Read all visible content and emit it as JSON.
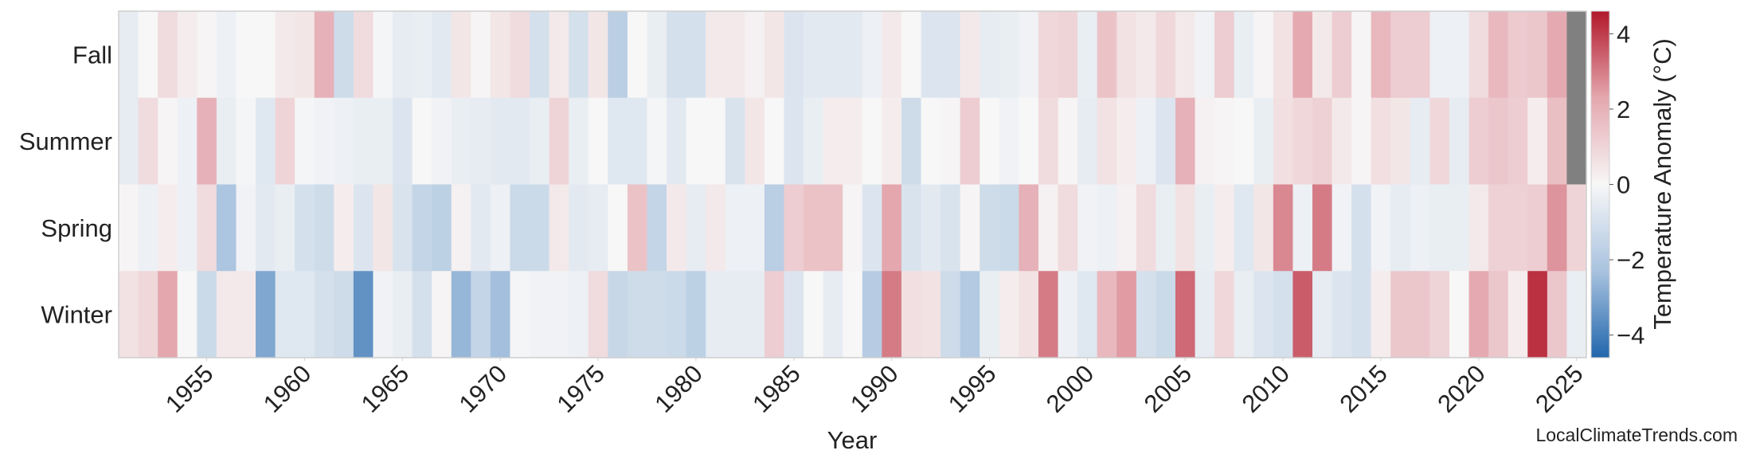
{
  "chart_data": {
    "type": "heatmap",
    "xlabel": "Year",
    "x": [
      1951,
      1952,
      1953,
      1954,
      1955,
      1956,
      1957,
      1958,
      1959,
      1960,
      1961,
      1962,
      1963,
      1964,
      1965,
      1966,
      1967,
      1968,
      1969,
      1970,
      1971,
      1972,
      1973,
      1974,
      1975,
      1976,
      1977,
      1978,
      1979,
      1980,
      1981,
      1982,
      1983,
      1984,
      1985,
      1986,
      1987,
      1988,
      1989,
      1990,
      1991,
      1992,
      1993,
      1994,
      1995,
      1996,
      1997,
      1998,
      1999,
      2000,
      2001,
      2002,
      2003,
      2004,
      2005,
      2006,
      2007,
      2008,
      2009,
      2010,
      2011,
      2012,
      2013,
      2014,
      2015,
      2016,
      2017,
      2018,
      2019,
      2020,
      2021,
      2022,
      2023,
      2024,
      2025
    ],
    "xlim": [
      1950.5,
      2025.5
    ],
    "xticks": [
      1955,
      1960,
      1965,
      1970,
      1975,
      1980,
      1985,
      1990,
      1995,
      2000,
      2005,
      2010,
      2015,
      2020,
      2025
    ],
    "rows": [
      {
        "name": "Fall",
        "values": [
          -0.5,
          0,
          0.8,
          0.3,
          0.1,
          -0.3,
          0,
          0,
          0.4,
          0.5,
          2.0,
          -1.2,
          0.8,
          -0.1,
          -0.5,
          -0.4,
          -0.6,
          0.5,
          0.1,
          0.5,
          0.8,
          -1.0,
          0.4,
          -1.0,
          0.5,
          -1.8,
          0,
          -0.4,
          -1.0,
          -1.0,
          0.4,
          0.4,
          0.2,
          0.5,
          -0.8,
          -0.6,
          -0.6,
          -0.6,
          -0.3,
          0.4,
          0,
          -0.8,
          -0.8,
          0.4,
          -0.5,
          -0.4,
          -0.2,
          0.9,
          1.0,
          -0.4,
          1.5,
          0.6,
          0.4,
          0.9,
          0.4,
          -0.2,
          1.2,
          -0.4,
          0.1,
          0.6,
          2.2,
          0.4,
          1.2,
          0.1,
          1.8,
          1.2,
          1.2,
          -0.3,
          -0.3,
          0.8,
          1.8,
          1.3,
          1.4,
          2.2,
          null
        ]
      },
      {
        "name": "Summer",
        "values": [
          -0.5,
          0.8,
          0.1,
          -0.3,
          2.0,
          -0.4,
          -0.1,
          -0.7,
          1.0,
          -0.1,
          -0.2,
          -0.3,
          -0.4,
          -0.4,
          -0.8,
          0,
          -0.2,
          -0.4,
          -0.5,
          -0.6,
          -0.6,
          -0.4,
          1.0,
          -0.4,
          0,
          -0.7,
          -0.7,
          -0.1,
          -0.6,
          0,
          0,
          -0.9,
          0.5,
          0,
          -0.8,
          -0.4,
          0.3,
          0.3,
          0,
          0.3,
          -1.2,
          0,
          0.1,
          1.2,
          0,
          -0.2,
          0,
          0.8,
          0.1,
          -0.5,
          0.6,
          0.3,
          -0.3,
          -0.8,
          2.0,
          0.2,
          0.1,
          0,
          -0.4,
          0.7,
          0.9,
          1.1,
          0.4,
          0.1,
          0.7,
          0.5,
          -0.5,
          0.9,
          -0.5,
          1.2,
          1.4,
          1.2,
          0.3,
          1.6,
          null
        ]
      },
      {
        "name": "Spring",
        "values": [
          0.1,
          -0.3,
          0.3,
          -0.3,
          0.8,
          -2.2,
          -0.2,
          -0.6,
          -0.4,
          -1.0,
          -1.2,
          0.3,
          -0.8,
          0.5,
          -0.9,
          -1.5,
          -1.7,
          0.2,
          -0.6,
          -0.3,
          -1.3,
          -1.3,
          0.4,
          -0.6,
          -0.5,
          0,
          1.5,
          -1.5,
          0.4,
          -0.5,
          0.4,
          -0.3,
          -0.3,
          -1.8,
          1.2,
          1.5,
          1.5,
          0.1,
          -0.8,
          2.3,
          -0.9,
          -0.6,
          -0.9,
          0.1,
          -1.2,
          -1.3,
          2.0,
          0.2,
          0.8,
          -0.2,
          -0.3,
          0.2,
          0.8,
          -0.4,
          0.6,
          -0.4,
          0.3,
          -0.7,
          0.5,
          2.8,
          -0.3,
          3.0,
          -0.2,
          -1.0,
          -0.2,
          -0.5,
          -0.3,
          -0.4,
          -0.4,
          0.4,
          1.1,
          1.1,
          1.2,
          2.6,
          1.0
        ]
      },
      {
        "name": "Winter",
        "values": [
          0.6,
          0.9,
          2.3,
          0,
          -1.3,
          0.4,
          0.4,
          -3.0,
          -0.7,
          -0.7,
          -1.0,
          -1.2,
          -3.5,
          -0.2,
          -0.4,
          -1.0,
          0.1,
          -2.6,
          -1.5,
          -2.4,
          -0.1,
          -0.2,
          -0.2,
          -0.3,
          0.8,
          -1.4,
          -1.2,
          -1.2,
          -1.3,
          -1.7,
          -0.5,
          -0.5,
          -0.5,
          1.2,
          -0.8,
          0,
          -0.5,
          0,
          -1.9,
          3.0,
          0.7,
          0.6,
          -1.2,
          -2.0,
          -0.4,
          0.3,
          0.6,
          3.0,
          -0.3,
          -0.7,
          1.8,
          2.5,
          -1.0,
          -1.3,
          3.3,
          -0.5,
          0.9,
          -0.4,
          -0.8,
          -1.0,
          3.5,
          -0.5,
          -0.8,
          -1.0,
          0.3,
          1.4,
          1.4,
          1.0,
          0,
          2.2,
          1.4,
          0.3,
          4.2,
          1.4,
          -0.4
        ]
      }
    ],
    "nan_color": "#808080",
    "colorbar": {
      "label": "Temperature Anomaly (°C)",
      "lim": [
        -4.6,
        4.6
      ],
      "ticks": [
        {
          "value": -4,
          "label": "−4"
        },
        {
          "value": -2,
          "label": "−2"
        },
        0,
        2,
        4
      ],
      "colors": [
        "#2166ac",
        "#a9c3df",
        "#f7f7f7",
        "#e4a7ae",
        "#b2182b"
      ]
    },
    "watermark": "LocalClimateTrends.com"
  }
}
